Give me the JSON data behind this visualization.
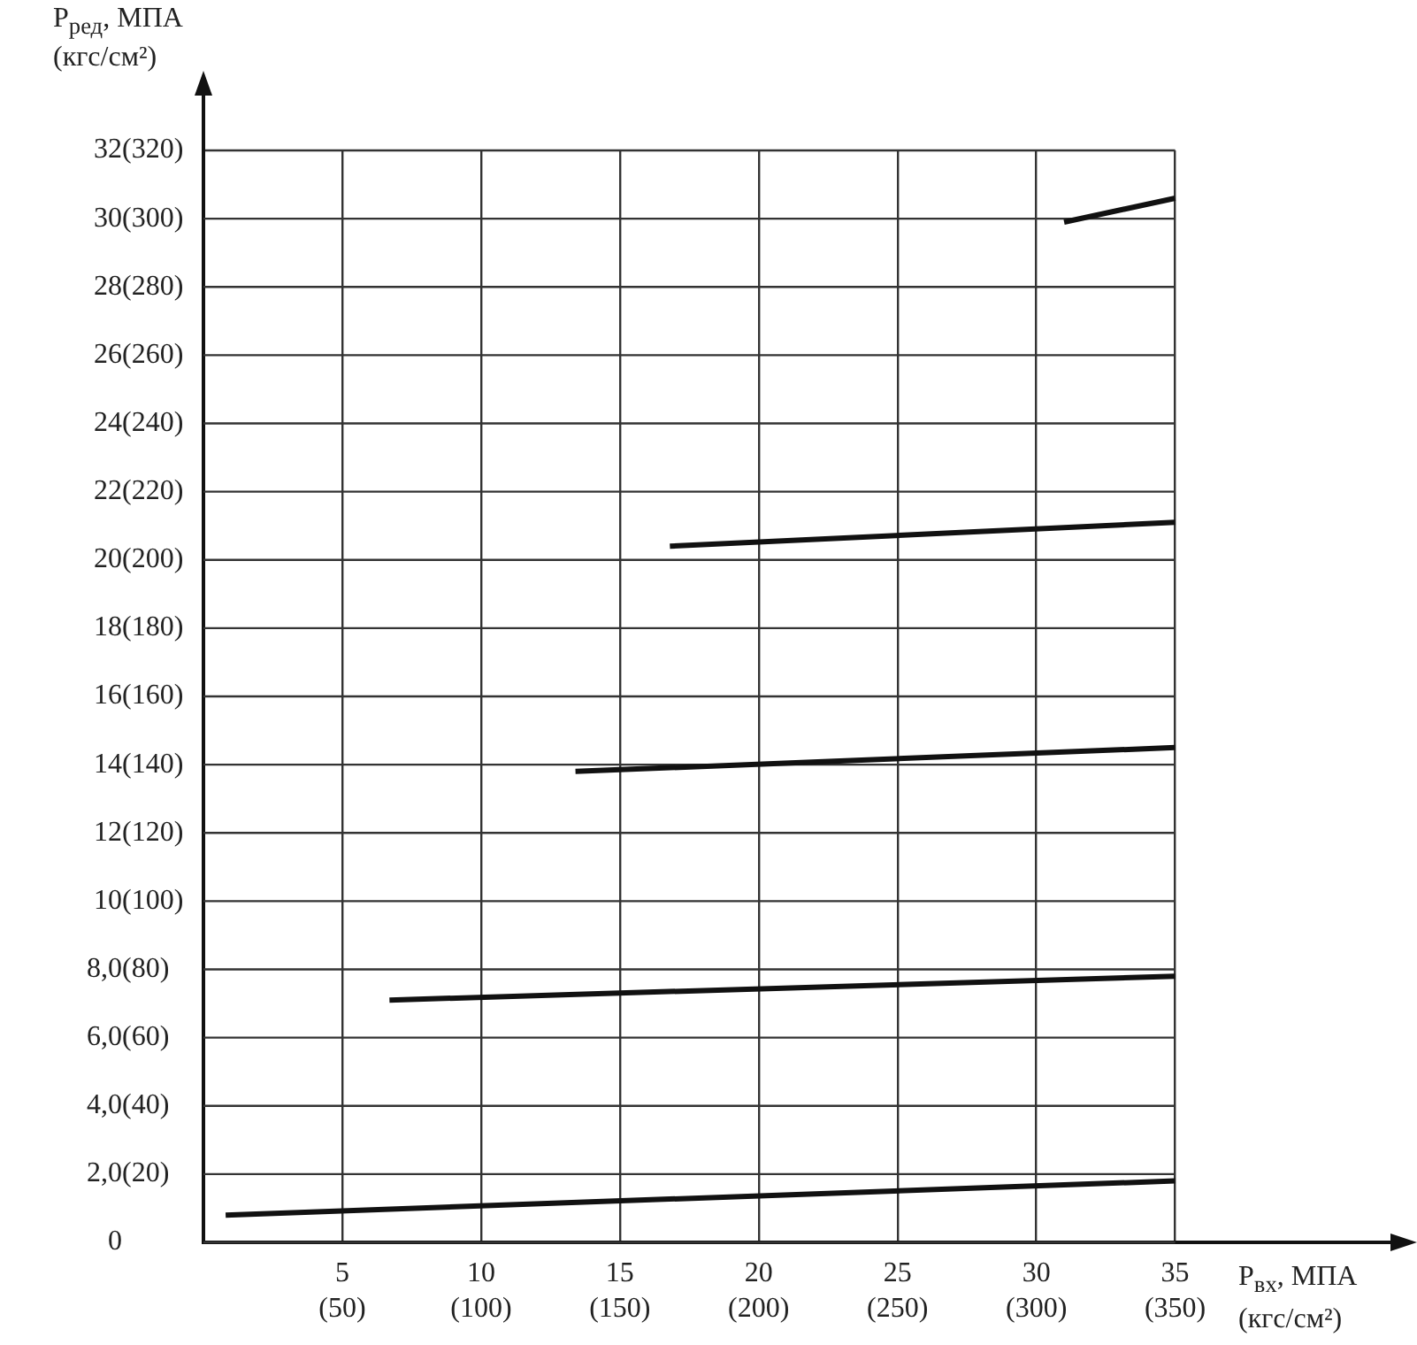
{
  "chart_data": {
    "type": "line",
    "xlabel": "P$_{вх}$, МПА\n(кгс/см²)",
    "ylabel": "P$_{ред}$, МПА\n(кгс/см²)",
    "xlim": [
      0,
      43.2
    ],
    "ylim": [
      0,
      32
    ],
    "xticks": [
      {
        "value": 0,
        "label": null
      },
      5,
      10,
      15,
      20,
      25,
      30,
      35
    ],
    "x2lim": [
      0,
      432
    ],
    "x2ticks": [
      {
        "value": 50,
        "label": "(50)"
      },
      {
        "value": 100,
        "label": "(100)"
      },
      {
        "value": 150,
        "label": "(150)"
      },
      {
        "value": 200,
        "label": "(200)"
      },
      {
        "value": 250,
        "label": "(250)"
      },
      {
        "value": 300,
        "label": "(300)"
      },
      {
        "value": 350,
        "label": "(350)"
      }
    ],
    "yticks": [
      0,
      {
        "value": 2,
        "label": "2,0"
      },
      {
        "value": 4,
        "label": "4,0"
      },
      {
        "value": 6,
        "label": "6,0"
      },
      {
        "value": 8,
        "label": "8,0"
      },
      10,
      12,
      14,
      16,
      18,
      20,
      22,
      24,
      26,
      28,
      30,
      32
    ],
    "y2lim": [
      0,
      320
    ],
    "y2ticks": [
      {
        "value": 20,
        "label": "(20)"
      },
      {
        "value": 40,
        "label": "(40)"
      },
      {
        "value": 60,
        "label": "(60)"
      },
      {
        "value": 80,
        "label": "(80)"
      },
      {
        "value": 100,
        "label": "(100)"
      },
      {
        "value": 120,
        "label": "(120)"
      },
      {
        "value": 140,
        "label": "(140)"
      },
      {
        "value": 160,
        "label": "(160)"
      },
      {
        "value": 180,
        "label": "(180)"
      },
      {
        "value": 200,
        "label": "(200)"
      },
      {
        "value": 220,
        "label": "(220)"
      },
      {
        "value": 240,
        "label": "(240)"
      },
      {
        "value": 260,
        "label": "(260)"
      },
      {
        "value": 280,
        "label": "(280)"
      },
      {
        "value": 300,
        "label": "(300)"
      },
      {
        "value": 320,
        "label": "(320)"
      }
    ],
    "grid": true,
    "marker": "none",
    "line_style": "solid",
    "series": [
      {
        "color": "#111111",
        "x": [
          0.8,
          35
        ],
        "values": [
          0.8,
          1.8
        ]
      },
      {
        "color": "#111111",
        "x": [
          6.7,
          35
        ],
        "values": [
          7.1,
          7.8
        ]
      },
      {
        "color": "#111111",
        "x": [
          13.4,
          35
        ],
        "values": [
          13.8,
          14.5
        ]
      },
      {
        "color": "#111111",
        "x": [
          16.8,
          35
        ],
        "values": [
          20.4,
          21.1
        ]
      },
      {
        "color": "#111111",
        "x": [
          31,
          35
        ],
        "values": [
          29.9,
          30.6
        ]
      }
    ]
  }
}
